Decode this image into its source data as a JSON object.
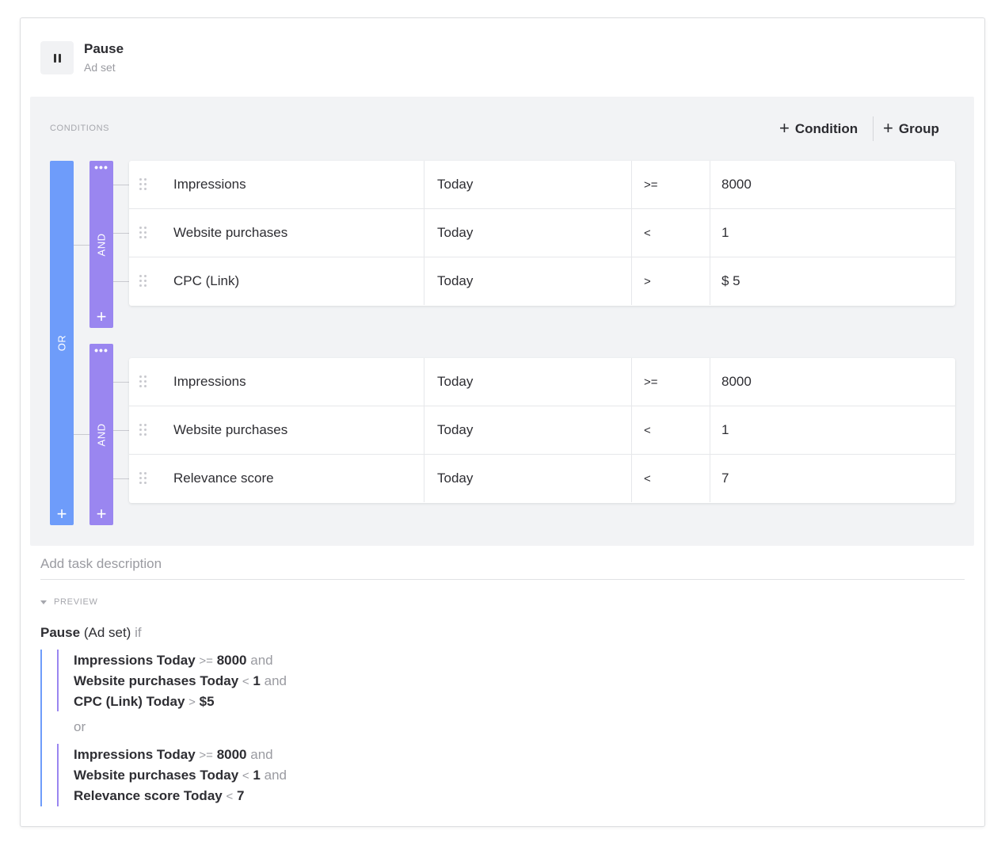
{
  "action": {
    "title": "Pause",
    "subtitle": "Ad set",
    "icon": "pause-icon"
  },
  "conditions": {
    "label": "CONDITIONS",
    "add_condition_label": "Condition",
    "add_group_label": "Group",
    "or_label": "OR",
    "and_label": "AND",
    "groups": [
      {
        "rows": [
          {
            "metric": "Impressions",
            "period": "Today",
            "operator": ">=",
            "value": "8000"
          },
          {
            "metric": "Website purchases",
            "period": "Today",
            "operator": "<",
            "value": "1"
          },
          {
            "metric": "CPC (Link)",
            "period": "Today",
            "operator": ">",
            "value": "$ 5"
          }
        ]
      },
      {
        "rows": [
          {
            "metric": "Impressions",
            "period": "Today",
            "operator": ">=",
            "value": "8000"
          },
          {
            "metric": "Website purchases",
            "period": "Today",
            "operator": "<",
            "value": "1"
          },
          {
            "metric": "Relevance score",
            "period": "Today",
            "operator": "<",
            "value": "7"
          }
        ]
      }
    ]
  },
  "description": {
    "placeholder": "Add task description"
  },
  "preview": {
    "label": "PREVIEW",
    "head_action": "Pause",
    "head_object": "(Ad set)",
    "head_if": "if",
    "and_word": "and",
    "or_word": "or",
    "groups": [
      [
        {
          "metric": "Impressions Today",
          "op": ">=",
          "value": "8000"
        },
        {
          "metric": "Website purchases Today",
          "op": "<",
          "value": "1"
        },
        {
          "metric": "CPC (Link) Today",
          "op": ">",
          "value": "$5"
        }
      ],
      [
        {
          "metric": "Impressions Today",
          "op": ">=",
          "value": "8000"
        },
        {
          "metric": "Website purchases Today",
          "op": "<",
          "value": "1"
        },
        {
          "metric": "Relevance score Today",
          "op": "<",
          "value": "7"
        }
      ]
    ]
  },
  "colors": {
    "or_bar": "#6e9cfa",
    "and_bar": "#9a86f0"
  }
}
